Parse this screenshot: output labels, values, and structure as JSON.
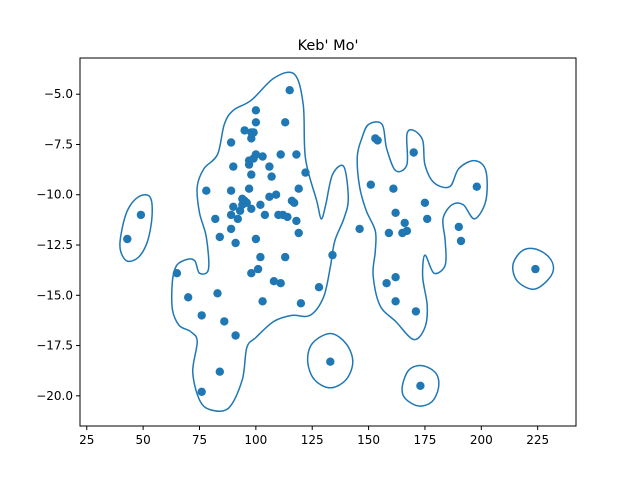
{
  "chart_data": {
    "type": "scatter",
    "title": "Keb' Mo'",
    "xlabel": "",
    "ylabel": "",
    "xlim": [
      22,
      242
    ],
    "ylim": [
      -21.5,
      -3.2
    ],
    "xticks": [
      25,
      50,
      75,
      100,
      125,
      150,
      175,
      200,
      225
    ],
    "xtick_labels": [
      "25",
      "50",
      "75",
      "100",
      "125",
      "150",
      "175",
      "200",
      "225"
    ],
    "yticks": [
      -5.0,
      -7.5,
      -10.0,
      -12.5,
      -15.0,
      -17.5,
      -20.0
    ],
    "ytick_labels": [
      "−5.0",
      "−7.5",
      "−10.0",
      "−12.5",
      "−15.0",
      "−17.5",
      "−20.0"
    ],
    "grid": false,
    "color": "#1f77b4",
    "points": [
      [
        43,
        -12.2
      ],
      [
        49,
        -11.0
      ],
      [
        65,
        -13.9
      ],
      [
        70,
        -15.1
      ],
      [
        76,
        -16.0
      ],
      [
        76,
        -19.8
      ],
      [
        78,
        -9.8
      ],
      [
        82,
        -11.2
      ],
      [
        83,
        -14.9
      ],
      [
        84,
        -12.1
      ],
      [
        84,
        -18.8
      ],
      [
        86,
        -16.3
      ],
      [
        89,
        -7.4
      ],
      [
        89,
        -9.8
      ],
      [
        89,
        -11.0
      ],
      [
        89,
        -11.7
      ],
      [
        90,
        -8.6
      ],
      [
        90,
        -10.6
      ],
      [
        91,
        -12.4
      ],
      [
        91,
        -17.0
      ],
      [
        92,
        -11.2
      ],
      [
        93,
        -10.8
      ],
      [
        94,
        -10.5
      ],
      [
        94,
        -10.2
      ],
      [
        95,
        -10.3
      ],
      [
        95,
        -6.8
      ],
      [
        96,
        -10.4
      ],
      [
        97,
        -8.5
      ],
      [
        97,
        -8.3
      ],
      [
        97,
        -9.7
      ],
      [
        98,
        -7.2
      ],
      [
        98,
        -6.9
      ],
      [
        98,
        -9.0
      ],
      [
        98,
        -10.7
      ],
      [
        98,
        -13.9
      ],
      [
        99,
        -8.2
      ],
      [
        99,
        -6.9
      ],
      [
        100,
        -5.8
      ],
      [
        100,
        -6.4
      ],
      [
        100,
        -8.0
      ],
      [
        100,
        -12.2
      ],
      [
        101,
        -13.7
      ],
      [
        102,
        -10.5
      ],
      [
        102,
        -13.1
      ],
      [
        103,
        -8.1
      ],
      [
        103,
        -15.3
      ],
      [
        104,
        -11.0
      ],
      [
        106,
        -8.6
      ],
      [
        106,
        -10.1
      ],
      [
        107,
        -9.1
      ],
      [
        108,
        -14.3
      ],
      [
        109,
        -10.0
      ],
      [
        110,
        -11.0
      ],
      [
        111,
        -8.0
      ],
      [
        111,
        -14.4
      ],
      [
        112,
        -11.0
      ],
      [
        113,
        -6.4
      ],
      [
        113,
        -13.1
      ],
      [
        114,
        -11.1
      ],
      [
        115,
        -4.8
      ],
      [
        116,
        -10.3
      ],
      [
        117,
        -10.4
      ],
      [
        118,
        -8.0
      ],
      [
        118,
        -11.3
      ],
      [
        119,
        -9.7
      ],
      [
        119,
        -11.9
      ],
      [
        120,
        -15.4
      ],
      [
        122,
        -8.9
      ],
      [
        128,
        -14.6
      ],
      [
        134,
        -13.0
      ],
      [
        146,
        -11.7
      ],
      [
        151,
        -9.5
      ],
      [
        153,
        -7.2
      ],
      [
        154,
        -7.3
      ],
      [
        158,
        -14.4
      ],
      [
        159,
        -11.9
      ],
      [
        161,
        -9.7
      ],
      [
        162,
        -10.9
      ],
      [
        162,
        -14.1
      ],
      [
        162,
        -15.3
      ],
      [
        165,
        -11.9
      ],
      [
        166,
        -11.4
      ],
      [
        167,
        -11.8
      ],
      [
        170,
        -7.9
      ],
      [
        171,
        -15.8
      ],
      [
        175,
        -10.4
      ],
      [
        176,
        -11.2
      ],
      [
        190,
        -11.6
      ],
      [
        191,
        -12.3
      ],
      [
        198,
        -9.6
      ],
      [
        224,
        -13.7
      ],
      [
        133,
        -18.3
      ],
      [
        173,
        -19.5
      ]
    ],
    "contours": [
      [
        [
          98,
          -5.3
        ],
        [
          108,
          -4.2
        ],
        [
          117,
          -4.0
        ],
        [
          121,
          -5.5
        ],
        [
          122,
          -8.2
        ],
        [
          127,
          -10.3
        ],
        [
          129,
          -11.2
        ],
        [
          131,
          -10.5
        ],
        [
          134,
          -9.0
        ],
        [
          139,
          -8.6
        ],
        [
          141,
          -10.2
        ],
        [
          139,
          -11.2
        ],
        [
          135,
          -12.3
        ],
        [
          133,
          -13.6
        ],
        [
          130,
          -15.1
        ],
        [
          124,
          -16.0
        ],
        [
          116,
          -16.0
        ],
        [
          108,
          -16.3
        ],
        [
          100,
          -17.1
        ],
        [
          96,
          -17.6
        ],
        [
          94,
          -19.2
        ],
        [
          88,
          -20.6
        ],
        [
          80,
          -20.7
        ],
        [
          75,
          -20.2
        ],
        [
          72,
          -18.8
        ],
        [
          74,
          -17.3
        ],
        [
          71,
          -16.8
        ],
        [
          66,
          -16.5
        ],
        [
          63,
          -15.7
        ],
        [
          63,
          -14.3
        ],
        [
          65,
          -13.5
        ],
        [
          70,
          -13.2
        ],
        [
          73,
          -13.3
        ],
        [
          75,
          -13.9
        ],
        [
          79,
          -13.7
        ],
        [
          78,
          -12.1
        ],
        [
          75,
          -10.9
        ],
        [
          74,
          -9.6
        ],
        [
          77,
          -8.7
        ],
        [
          83,
          -8.0
        ],
        [
          86,
          -6.5
        ],
        [
          90,
          -5.8
        ]
      ],
      [
        [
          150,
          -6.5
        ],
        [
          156,
          -6.5
        ],
        [
          158,
          -7.7
        ],
        [
          162,
          -8.8
        ],
        [
          167,
          -8.5
        ],
        [
          167,
          -7.0
        ],
        [
          170,
          -6.8
        ],
        [
          174,
          -7.3
        ],
        [
          175,
          -8.5
        ],
        [
          179,
          -9.4
        ],
        [
          186,
          -9.6
        ],
        [
          190,
          -8.7
        ],
        [
          197,
          -8.3
        ],
        [
          202,
          -8.8
        ],
        [
          202,
          -10.3
        ],
        [
          197,
          -11.2
        ],
        [
          192,
          -10.5
        ],
        [
          187,
          -10.5
        ],
        [
          183,
          -11.2
        ],
        [
          184,
          -12.3
        ],
        [
          184,
          -13.5
        ],
        [
          179,
          -13.9
        ],
        [
          175,
          -13.0
        ],
        [
          174,
          -14.1
        ],
        [
          176,
          -15.5
        ],
        [
          175,
          -16.6
        ],
        [
          170,
          -17.2
        ],
        [
          162,
          -16.3
        ],
        [
          155,
          -15.5
        ],
        [
          152,
          -14.0
        ],
        [
          153,
          -12.8
        ],
        [
          153,
          -11.8
        ],
        [
          149,
          -10.8
        ],
        [
          146,
          -9.6
        ],
        [
          145,
          -8.1
        ],
        [
          147,
          -7.2
        ]
      ],
      [
        [
          40,
          -12.1
        ],
        [
          43,
          -10.8
        ],
        [
          48,
          -10.1
        ],
        [
          53,
          -10.1
        ],
        [
          54,
          -11.0
        ],
        [
          52,
          -12.3
        ],
        [
          48,
          -13.1
        ],
        [
          43,
          -13.3
        ],
        [
          40,
          -12.8
        ]
      ],
      [
        [
          123,
          -18.3
        ],
        [
          125,
          -17.4
        ],
        [
          133,
          -16.9
        ],
        [
          140,
          -17.4
        ],
        [
          143,
          -18.3
        ],
        [
          140,
          -19.2
        ],
        [
          133,
          -19.6
        ],
        [
          126,
          -19.2
        ]
      ],
      [
        [
          165,
          -19.5
        ],
        [
          168,
          -18.7
        ],
        [
          174,
          -18.5
        ],
        [
          180,
          -18.9
        ],
        [
          181,
          -19.6
        ],
        [
          178,
          -20.3
        ],
        [
          172,
          -20.5
        ],
        [
          166,
          -20.1
        ]
      ],
      [
        [
          214,
          -13.5
        ],
        [
          218,
          -12.8
        ],
        [
          224,
          -12.7
        ],
        [
          230,
          -13.1
        ],
        [
          232,
          -13.7
        ],
        [
          229,
          -14.3
        ],
        [
          223,
          -14.7
        ],
        [
          216,
          -14.3
        ]
      ]
    ]
  }
}
